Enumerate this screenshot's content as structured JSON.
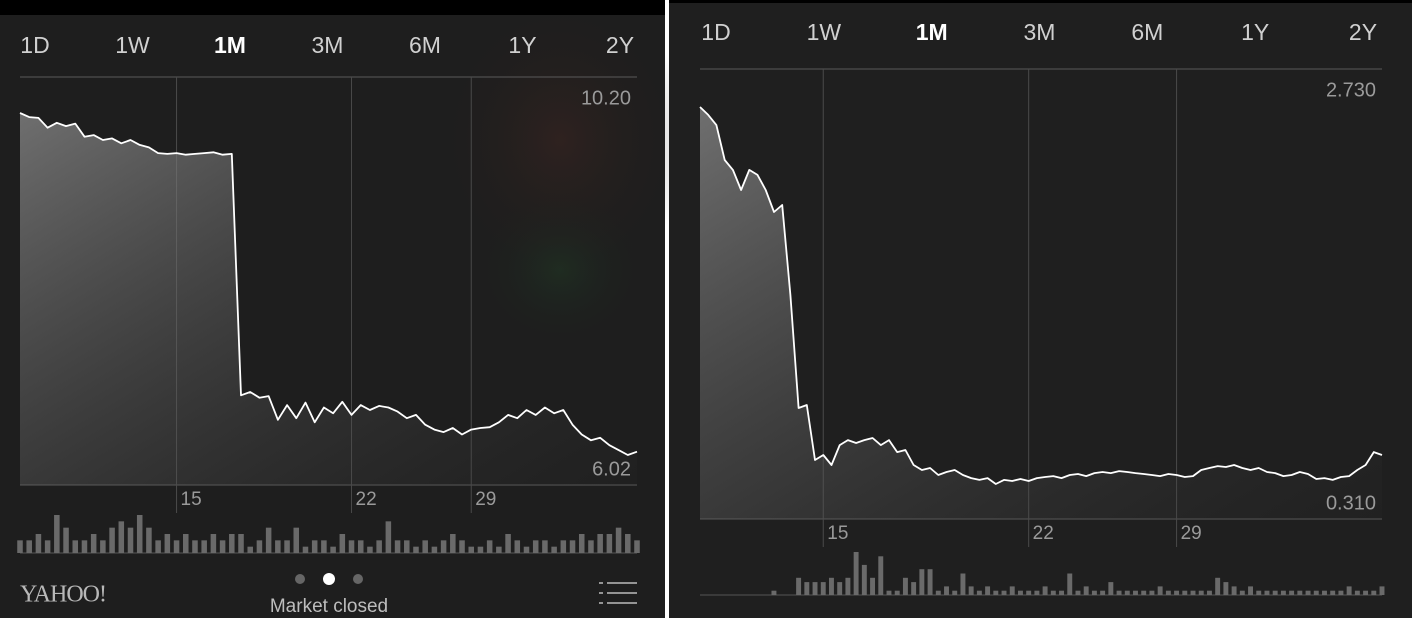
{
  "panels": [
    {
      "tabs": [
        "1D",
        "1W",
        "1M",
        "3M",
        "6M",
        "1Y",
        "2Y"
      ],
      "selected_tab": 2
    },
    {
      "tabs": [
        "1D",
        "1W",
        "1M",
        "3M",
        "6M",
        "1Y",
        "2Y"
      ],
      "selected_tab": 2
    }
  ],
  "footer": {
    "logo": "YAHOO!",
    "status": "Market closed"
  },
  "chart_data": [
    {
      "type": "line",
      "color": "#ffffff",
      "values": [
        10.2,
        10.15,
        10.14,
        10.02,
        10.08,
        10.04,
        10.07,
        9.91,
        9.93,
        9.87,
        9.89,
        9.83,
        9.87,
        9.81,
        9.78,
        9.71,
        9.7,
        9.71,
        9.69,
        9.7,
        9.71,
        9.72,
        9.69,
        9.7,
        6.75,
        6.79,
        6.72,
        6.74,
        6.45,
        6.63,
        6.47,
        6.66,
        6.42,
        6.6,
        6.53,
        6.67,
        6.51,
        6.63,
        6.57,
        6.62,
        6.6,
        6.55,
        6.47,
        6.51,
        6.39,
        6.33,
        6.3,
        6.35,
        6.27,
        6.33,
        6.35,
        6.36,
        6.42,
        6.51,
        6.47,
        6.57,
        6.51,
        6.6,
        6.53,
        6.57,
        6.39,
        6.27,
        6.2,
        6.23,
        6.14,
        6.08,
        6.02,
        6.06
      ],
      "volume": [
        2,
        2,
        3,
        2,
        6,
        4,
        2,
        2,
        3,
        2,
        4,
        5,
        4,
        6,
        4,
        2,
        3,
        2,
        3,
        2,
        2,
        3,
        2,
        3,
        3,
        1,
        2,
        4,
        2,
        2,
        4,
        1,
        2,
        2,
        1,
        3,
        2,
        2,
        1,
        2,
        5,
        2,
        2,
        1,
        2,
        1,
        2,
        3,
        2,
        1,
        1,
        2,
        1,
        3,
        2,
        1,
        2,
        2,
        1,
        2,
        2,
        3,
        2,
        3,
        3,
        4,
        3,
        2
      ],
      "xlim": [
        0,
        67
      ],
      "xticks": [
        {
          "value": 17,
          "label": "15"
        },
        {
          "value": 36,
          "label": "22"
        },
        {
          "value": 49,
          "label": "29"
        }
      ],
      "ylim": [
        6.02,
        10.2
      ],
      "yticks": [
        {
          "value": 10.2,
          "label": "10.20"
        },
        {
          "value": 6.02,
          "label": "6.02"
        }
      ],
      "grid": true
    },
    {
      "type": "line",
      "color": "#ffffff",
      "values": [
        2.73,
        2.679,
        2.614,
        2.39,
        2.326,
        2.197,
        2.326,
        2.294,
        2.197,
        2.056,
        2.101,
        1.523,
        0.798,
        0.817,
        0.464,
        0.496,
        0.432,
        0.56,
        0.592,
        0.573,
        0.592,
        0.605,
        0.56,
        0.592,
        0.515,
        0.528,
        0.432,
        0.4,
        0.413,
        0.368,
        0.387,
        0.4,
        0.368,
        0.348,
        0.336,
        0.348,
        0.31,
        0.336,
        0.329,
        0.342,
        0.329,
        0.348,
        0.355,
        0.361,
        0.348,
        0.368,
        0.374,
        0.361,
        0.38,
        0.387,
        0.38,
        0.393,
        0.387,
        0.38,
        0.374,
        0.368,
        0.361,
        0.374,
        0.368,
        0.355,
        0.361,
        0.4,
        0.413,
        0.425,
        0.419,
        0.432,
        0.413,
        0.4,
        0.413,
        0.387,
        0.38,
        0.361,
        0.368,
        0.387,
        0.374,
        0.342,
        0.348,
        0.336,
        0.355,
        0.361,
        0.4,
        0.432,
        0.515,
        0.496
      ],
      "volume": [
        0,
        0,
        0,
        0,
        0,
        0,
        0,
        0,
        0,
        1,
        0,
        0,
        4,
        3,
        3,
        3,
        4,
        3,
        4,
        10,
        7,
        4,
        9,
        1,
        1,
        4,
        3,
        6,
        6,
        1,
        2,
        1,
        5,
        2,
        1,
        2,
        1,
        1,
        2,
        1,
        1,
        1,
        2,
        1,
        1,
        5,
        1,
        2,
        1,
        1,
        3,
        1,
        1,
        1,
        1,
        1,
        2,
        1,
        1,
        1,
        1,
        1,
        1,
        4,
        3,
        2,
        1,
        2,
        1,
        1,
        1,
        1,
        1,
        1,
        1,
        1,
        1,
        1,
        1,
        2,
        1,
        1,
        1,
        2
      ],
      "xlim": [
        0,
        83
      ],
      "xticks": [
        {
          "value": 15,
          "label": "15"
        },
        {
          "value": 40,
          "label": "22"
        },
        {
          "value": 58,
          "label": "29"
        }
      ],
      "ylim": [
        0.31,
        2.73
      ],
      "yticks": [
        {
          "value": 2.73,
          "label": "2.730"
        },
        {
          "value": 0.31,
          "label": "0.310"
        }
      ],
      "grid": true
    }
  ]
}
